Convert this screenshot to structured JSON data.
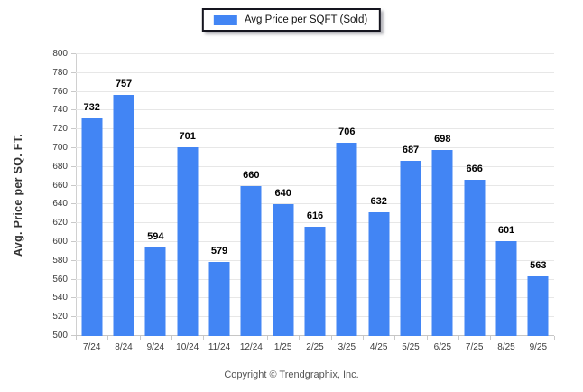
{
  "legend": {
    "label": "Avg Price per SQFT (Sold)",
    "swatch_color": "#4285f4"
  },
  "footer": {
    "copyright": "Copyright © Trendgraphix, Inc."
  },
  "chart_data": {
    "type": "bar",
    "title": "",
    "categories": [
      "7/24",
      "8/24",
      "9/24",
      "10/24",
      "11/24",
      "12/24",
      "1/25",
      "2/25",
      "3/25",
      "4/25",
      "5/25",
      "6/25",
      "7/25",
      "8/25",
      "9/25"
    ],
    "values": [
      732,
      757,
      594,
      701,
      579,
      660,
      640,
      616,
      706,
      632,
      687,
      698,
      666,
      601,
      563
    ],
    "series_name": "Avg Price per SQFT (Sold)",
    "xlabel": "",
    "ylabel": "Avg. Price per SQ. FT.",
    "ylim": [
      500,
      800
    ],
    "ytick_step": 20,
    "bar_color": "#4285f4",
    "grid": true,
    "legend_position": "top",
    "value_labels": true
  }
}
